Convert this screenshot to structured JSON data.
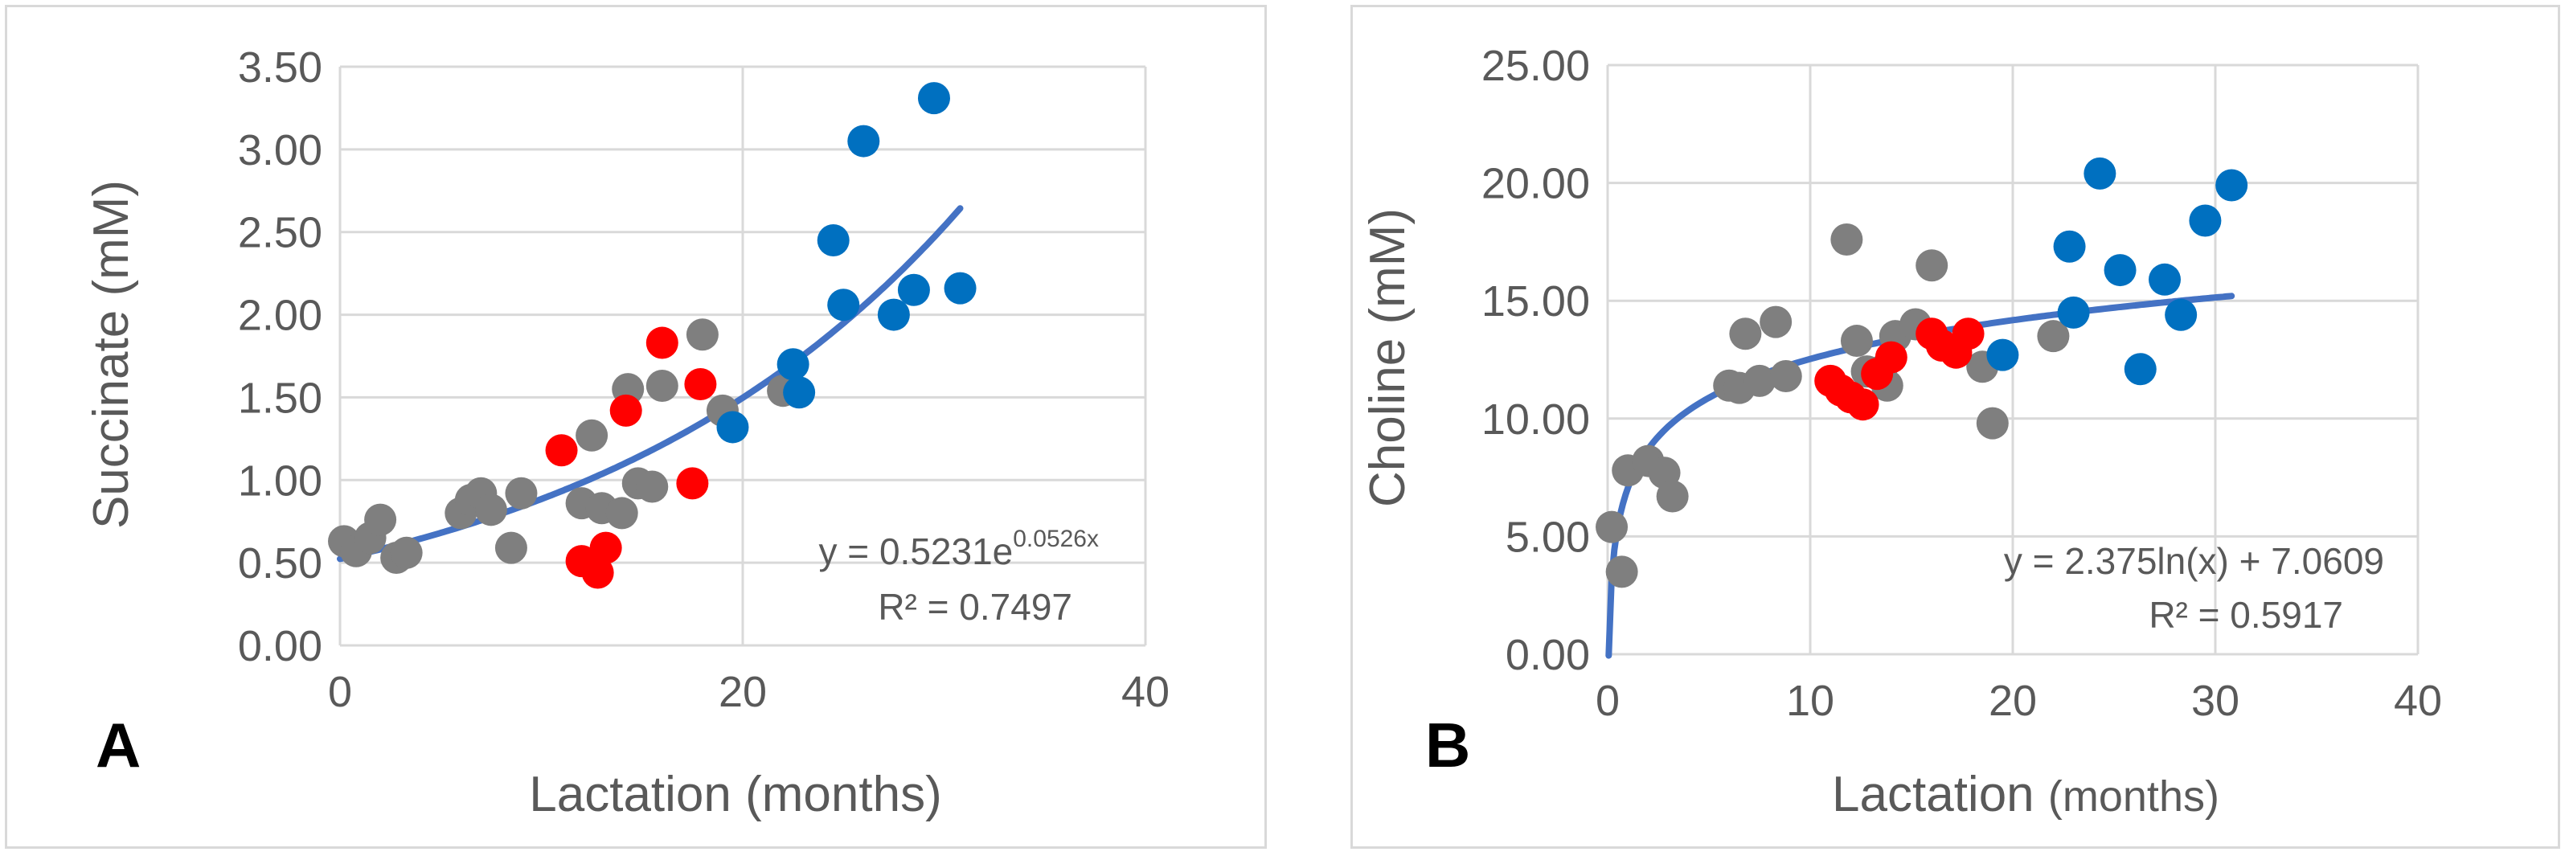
{
  "chart_data": [
    {
      "id": "A",
      "type": "scatter",
      "panel_label": "A",
      "xlabel": "Lactation (months)",
      "ylabel": "Succinate (mM)",
      "xlim": [
        0,
        40
      ],
      "ylim": [
        0,
        3.5
      ],
      "x_ticks": [
        "0",
        "20",
        "40"
      ],
      "y_ticks": [
        "0.00",
        "0.50",
        "1.00",
        "1.50",
        "2.00",
        "2.50",
        "3.00",
        "3.50"
      ],
      "grid": true,
      "colors": {
        "grey": "#7f7f7f",
        "red": "#ff0000",
        "blue": "#0070c0",
        "trend": "#4472c4"
      },
      "series": [
        {
          "name": "grey",
          "color": "#7f7f7f",
          "x": [
            0.2,
            0.8,
            1.5,
            2.0,
            2.8,
            3.3,
            6.0,
            6.5,
            7.0,
            7.5,
            8.5,
            9.0,
            12.0,
            12.5,
            13.0,
            14.0,
            14.3,
            14.8,
            15.5,
            16.0,
            18.0,
            19.0,
            22.0
          ],
          "y": [
            0.63,
            0.57,
            0.65,
            0.76,
            0.53,
            0.56,
            0.8,
            0.88,
            0.92,
            0.82,
            0.59,
            0.92,
            0.86,
            1.27,
            0.83,
            0.8,
            1.55,
            0.98,
            0.96,
            1.57,
            1.88,
            1.42,
            1.54
          ]
        },
        {
          "name": "red",
          "color": "#ff0000",
          "x": [
            11.0,
            12.0,
            12.8,
            13.2,
            14.2,
            16.0,
            17.5,
            17.9
          ],
          "y": [
            1.18,
            0.51,
            0.44,
            0.59,
            1.42,
            1.83,
            0.98,
            1.58
          ]
        },
        {
          "name": "blue",
          "color": "#0070c0",
          "x": [
            19.5,
            22.5,
            22.8,
            24.5,
            25.0,
            26.0,
            27.5,
            28.5,
            29.5,
            30.8
          ],
          "y": [
            1.32,
            1.7,
            1.53,
            2.45,
            2.06,
            3.05,
            2.0,
            2.15,
            3.31,
            2.16
          ]
        }
      ],
      "trendline": {
        "model": "exponential",
        "a": 0.5231,
        "b": 0.0526,
        "x_range": [
          0,
          30.8
        ]
      },
      "equation_base": "y = 0.5231e",
      "equation_exp": "0.0526x",
      "r2_text": "R² = 0.7497"
    },
    {
      "id": "B",
      "type": "scatter",
      "panel_label": "B",
      "xlabel": "Lactation",
      "xlabel_unit": "(months)",
      "ylabel": "Choline (mM)",
      "xlim": [
        0,
        40
      ],
      "ylim": [
        0,
        25
      ],
      "x_ticks": [
        "0",
        "10",
        "20",
        "30",
        "40"
      ],
      "y_ticks": [
        "0.00",
        "5.00",
        "10.00",
        "15.00",
        "20.00",
        "25.00"
      ],
      "grid": true,
      "colors": {
        "grey": "#7f7f7f",
        "red": "#ff0000",
        "blue": "#0070c0",
        "trend": "#4472c4"
      },
      "series": [
        {
          "name": "grey",
          "color": "#7f7f7f",
          "x": [
            0.2,
            0.7,
            1.0,
            2.0,
            2.8,
            3.2,
            6.0,
            6.5,
            6.8,
            7.5,
            8.3,
            8.8,
            11.8,
            12.3,
            12.8,
            13.5,
            13.8,
            14.2,
            15.2,
            16.0,
            18.5,
            19.0,
            22.0
          ],
          "y": [
            5.4,
            3.5,
            7.8,
            8.2,
            7.7,
            6.7,
            11.4,
            11.3,
            13.6,
            11.6,
            14.1,
            11.8,
            17.6,
            13.3,
            12.0,
            12.0,
            11.4,
            13.5,
            14.0,
            16.5,
            12.2,
            9.8,
            13.5
          ]
        },
        {
          "name": "red",
          "color": "#ff0000",
          "x": [
            11.0,
            11.5,
            12.0,
            12.6,
            13.3,
            14.0,
            16.0,
            16.5,
            17.2,
            17.8
          ],
          "y": [
            11.6,
            11.2,
            10.9,
            10.6,
            11.9,
            12.6,
            13.6,
            13.1,
            12.8,
            13.6
          ]
        },
        {
          "name": "blue",
          "color": "#0070c0",
          "x": [
            19.5,
            22.8,
            23.0,
            24.3,
            25.3,
            26.3,
            27.5,
            28.3,
            29.5,
            30.8
          ],
          "y": [
            12.7,
            17.3,
            14.5,
            20.4,
            16.3,
            12.1,
            15.9,
            14.4,
            18.4,
            19.9
          ]
        }
      ],
      "trendline": {
        "model": "logarithmic",
        "a": 2.375,
        "b": 7.0609,
        "x_range": [
          0.05,
          30.8
        ]
      },
      "equation_text": "y = 2.375ln(x) + 7.0609",
      "r2_text": "R² = 0.5917"
    }
  ]
}
